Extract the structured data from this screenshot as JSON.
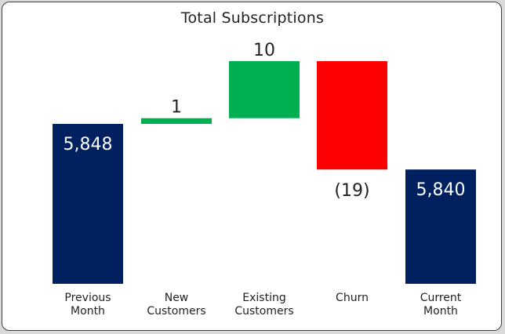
{
  "chart_data": {
    "type": "waterfall",
    "title": "Total Subscriptions",
    "categories": [
      [
        "Previous",
        "Month"
      ],
      [
        "New",
        "Customers"
      ],
      [
        "Existing",
        "Customers"
      ],
      [
        "Churn"
      ],
      [
        "Current",
        "Month"
      ]
    ],
    "steps": [
      {
        "kind": "total",
        "value": 5848,
        "label": "5,848",
        "color": "#002060"
      },
      {
        "kind": "delta",
        "value": 1,
        "label": "1",
        "color": "#00b050"
      },
      {
        "kind": "delta",
        "value": 10,
        "label": "10",
        "color": "#00b050"
      },
      {
        "kind": "delta",
        "value": -19,
        "label": "(19)",
        "color": "#ff0000"
      },
      {
        "kind": "total",
        "value": 5840,
        "label": "5,840",
        "color": "#002060"
      }
    ],
    "ylim": [
      5790,
      5865
    ],
    "grid": false,
    "legend": "none",
    "colors": {
      "total": "#002060",
      "increase": "#00b050",
      "decrease": "#ff0000"
    }
  }
}
